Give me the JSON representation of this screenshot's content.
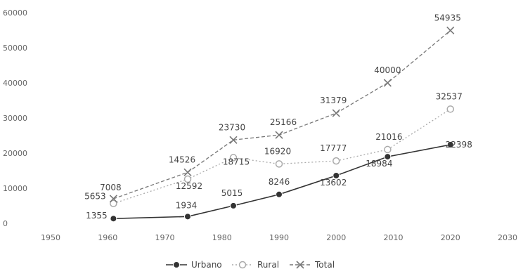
{
  "chart_data": {
    "type": "line",
    "x": [
      1961,
      1974,
      1982,
      1990,
      2000,
      2009,
      2020
    ],
    "xlim": [
      1950,
      2030
    ],
    "xticks": [
      "1950",
      "1960",
      "1970",
      "1980",
      "1990",
      "2000",
      "2010",
      "2020",
      "2030"
    ],
    "ylim": [
      0,
      60000
    ],
    "yticks": [
      "0",
      "10000",
      "20000",
      "30000",
      "40000",
      "50000",
      "60000"
    ],
    "grid": false,
    "legend": "bottom",
    "series": [
      {
        "name": "Urbano",
        "marker": "filled",
        "color": "#333333",
        "line": "solid",
        "values": [
          1355,
          1934,
          5015,
          8246,
          13602,
          18984,
          22398
        ],
        "labels": [
          "1355",
          "1934",
          "5015",
          "8246",
          "13602",
          "18984",
          "22398"
        ]
      },
      {
        "name": "Rural",
        "marker": "open",
        "color": "#aaaaaa",
        "line": "dotted",
        "values": [
          5653,
          12592,
          18715,
          16920,
          17777,
          21016,
          32537
        ],
        "labels": [
          "5653",
          "12592",
          "18715",
          "16920",
          "17777",
          "21016",
          "32537"
        ]
      },
      {
        "name": "Total",
        "marker": "cross",
        "color": "#777777",
        "line": "dashed",
        "values": [
          7008,
          14526,
          23730,
          25166,
          31379,
          40000,
          54935
        ],
        "labels": [
          "7008",
          "14526",
          "23730",
          "25166",
          "31379",
          "40000",
          "54935"
        ]
      }
    ]
  }
}
